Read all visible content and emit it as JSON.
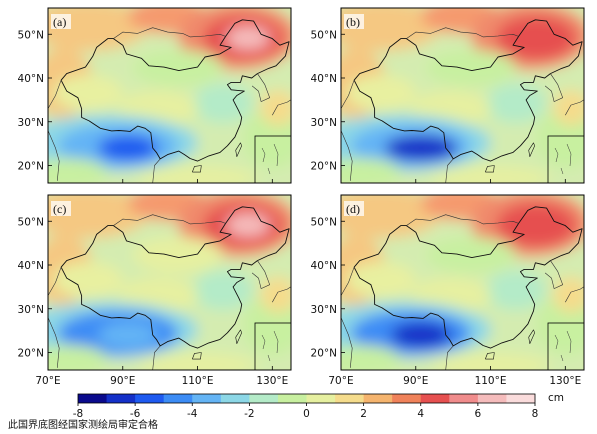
{
  "panels": [
    {
      "id": "a",
      "label": "(a)"
    },
    {
      "id": "b",
      "label": "(b)"
    },
    {
      "id": "c",
      "label": "(c)"
    },
    {
      "id": "d",
      "label": "(d)"
    }
  ],
  "lat_ticks": [
    "50°N",
    "40°N",
    "30°N",
    "20°N"
  ],
  "lon_ticks": [
    "70°E",
    "90°E",
    "110°E",
    "130°E"
  ],
  "colorbar": {
    "ticks": [
      "-8",
      "-6",
      "-4",
      "-2",
      "0",
      "2",
      "4",
      "6",
      "8"
    ],
    "unit": "cm",
    "min": -8,
    "max": 8,
    "colors": [
      "#0a0a8c",
      "#1430c8",
      "#1e5af0",
      "#3c8cf5",
      "#64b4f5",
      "#8cd7e6",
      "#b4ebc8",
      "#c8f0a0",
      "#e6f0a0",
      "#f5dc8c",
      "#f5b46e",
      "#f0825a",
      "#e65050",
      "#f08c8c",
      "#f5bcbc",
      "#fadcdc"
    ]
  },
  "footnote": "此国界底图经国家测绘局审定合格",
  "colors": {
    "border": "#111111",
    "coast": "#333333",
    "frame": "#000000"
  }
}
